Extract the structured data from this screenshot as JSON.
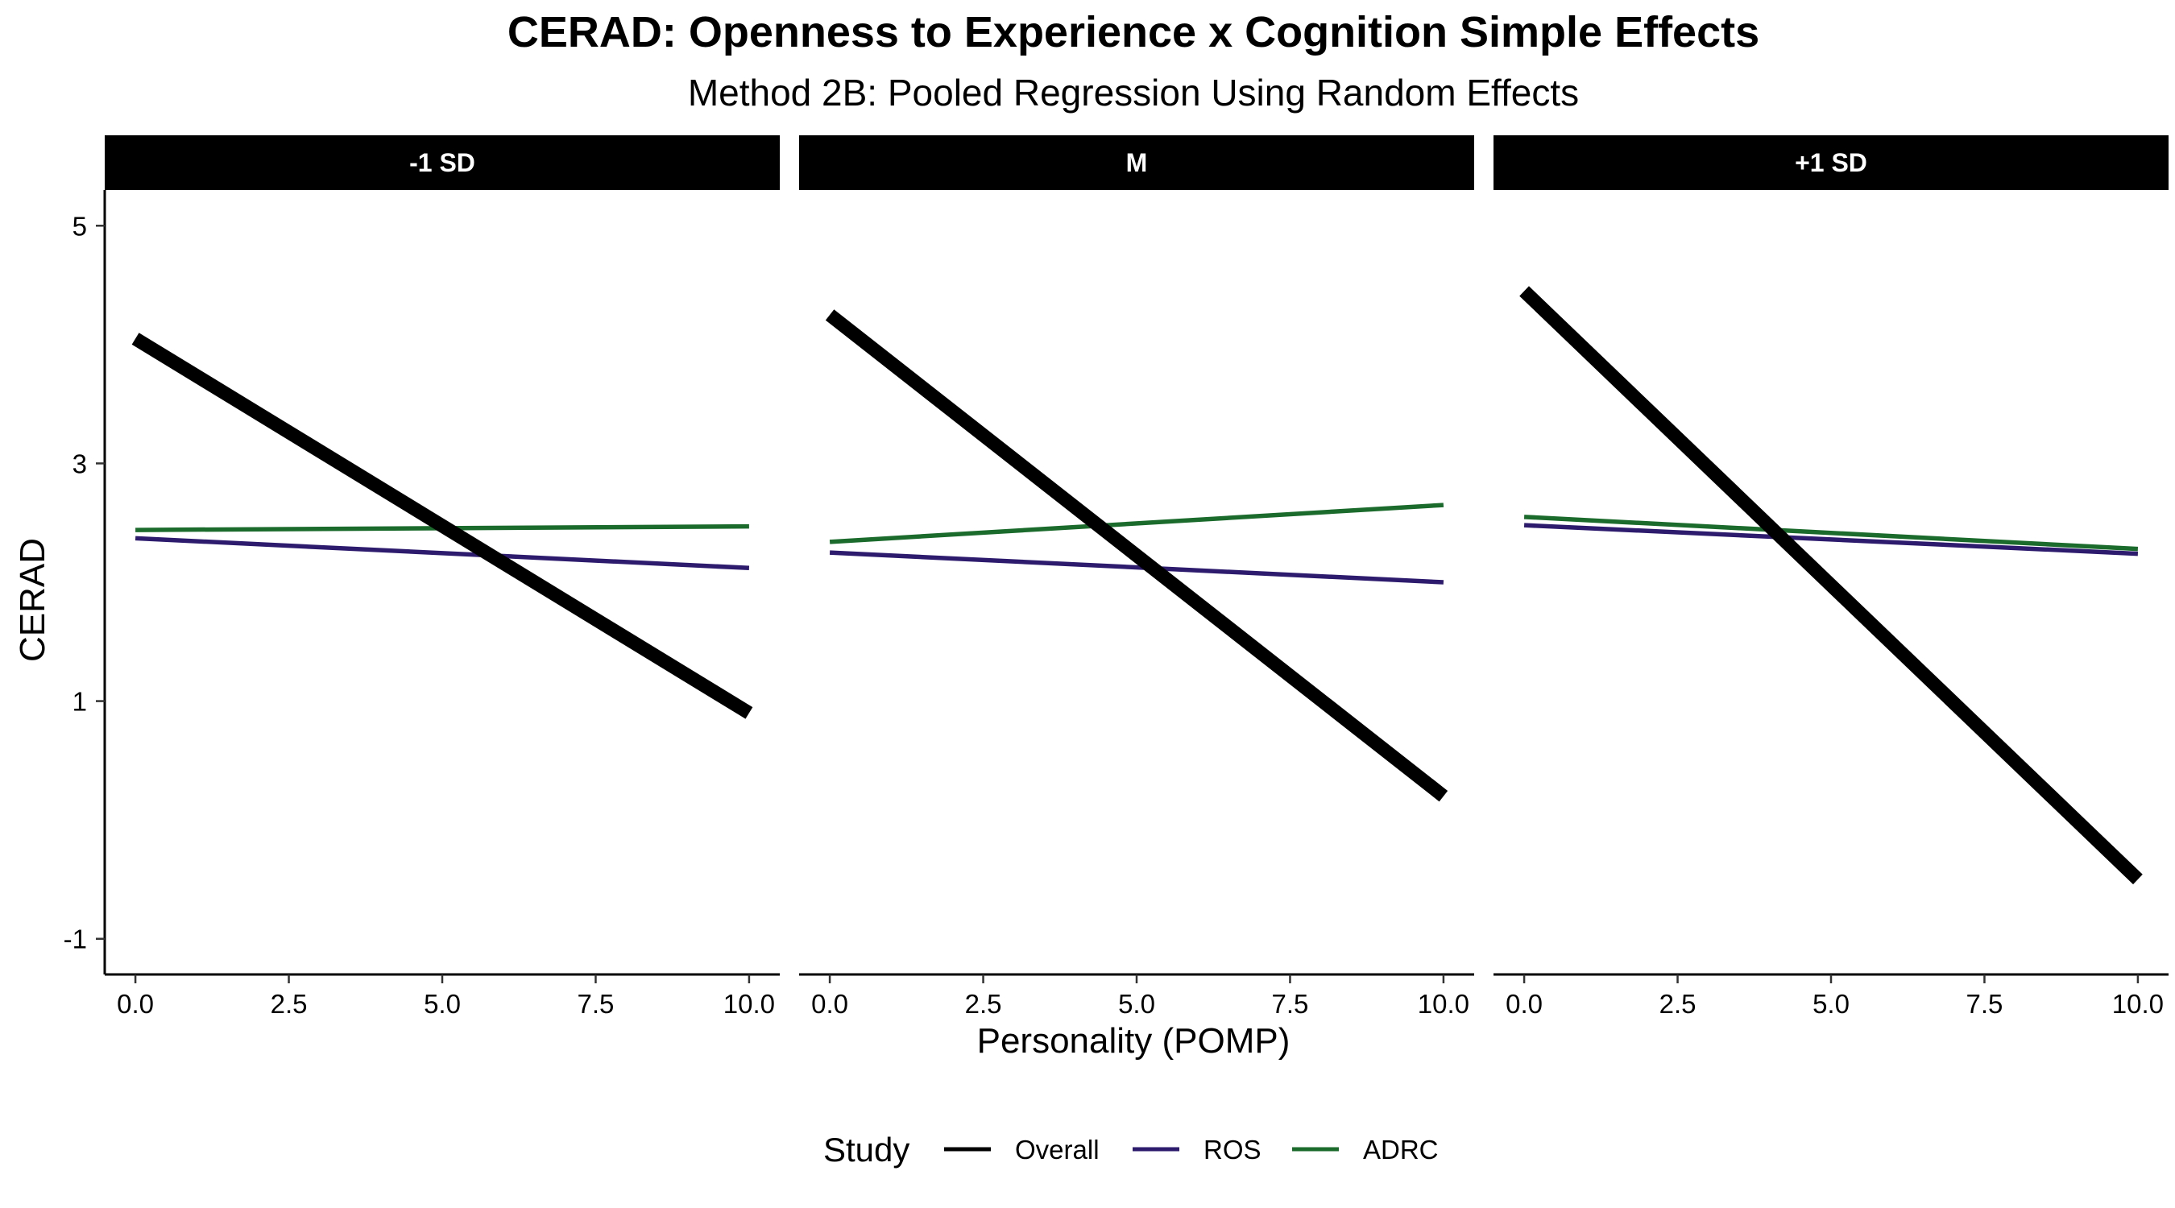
{
  "chart_data": {
    "type": "line",
    "title": "CERAD: Openness to Experience x Cognition Simple Effects",
    "subtitle": "Method 2B: Pooled Regression Using Random Effects",
    "xlabel": "Personality (POMP)",
    "ylabel": "CERAD",
    "xlim": [
      -0.5,
      10.5
    ],
    "ylim": [
      -1.3,
      5.3
    ],
    "x_ticks": [
      0,
      2.5,
      5,
      7.5,
      10
    ],
    "x_tick_labels": [
      "0.0",
      "2.5",
      "5.0",
      "7.5",
      "10.0"
    ],
    "y_ticks": [
      -1,
      1,
      3,
      5
    ],
    "y_tick_labels": [
      "-1",
      "1",
      "3",
      "5"
    ],
    "grid": false,
    "legend": {
      "title": "Study",
      "position": "bottom",
      "entries": [
        "Overall",
        "ROS",
        "ADRC"
      ]
    },
    "colors": {
      "Overall": "#000000",
      "ROS": "#2d1b6e",
      "ADRC": "#1b6b2c"
    },
    "panels": [
      {
        "label": "-1 SD",
        "series": [
          {
            "name": "Overall",
            "x": [
              0,
              10
            ],
            "y": [
              4.05,
              0.9
            ]
          },
          {
            "name": "ROS",
            "x": [
              0,
              10
            ],
            "y": [
              2.37,
              2.12
            ]
          },
          {
            "name": "ADRC",
            "x": [
              0,
              10
            ],
            "y": [
              2.44,
              2.47
            ]
          }
        ]
      },
      {
        "label": "M",
        "series": [
          {
            "name": "Overall",
            "x": [
              0,
              10
            ],
            "y": [
              4.25,
              0.2
            ]
          },
          {
            "name": "ROS",
            "x": [
              0,
              10
            ],
            "y": [
              2.25,
              2.0
            ]
          },
          {
            "name": "ADRC",
            "x": [
              0,
              10
            ],
            "y": [
              2.34,
              2.65
            ]
          }
        ]
      },
      {
        "label": "+1 SD",
        "series": [
          {
            "name": "Overall",
            "x": [
              0,
              10
            ],
            "y": [
              4.45,
              -0.5
            ]
          },
          {
            "name": "ROS",
            "x": [
              0,
              10
            ],
            "y": [
              2.48,
              2.24
            ]
          },
          {
            "name": "ADRC",
            "x": [
              0,
              10
            ],
            "y": [
              2.55,
              2.28
            ]
          }
        ]
      }
    ]
  }
}
